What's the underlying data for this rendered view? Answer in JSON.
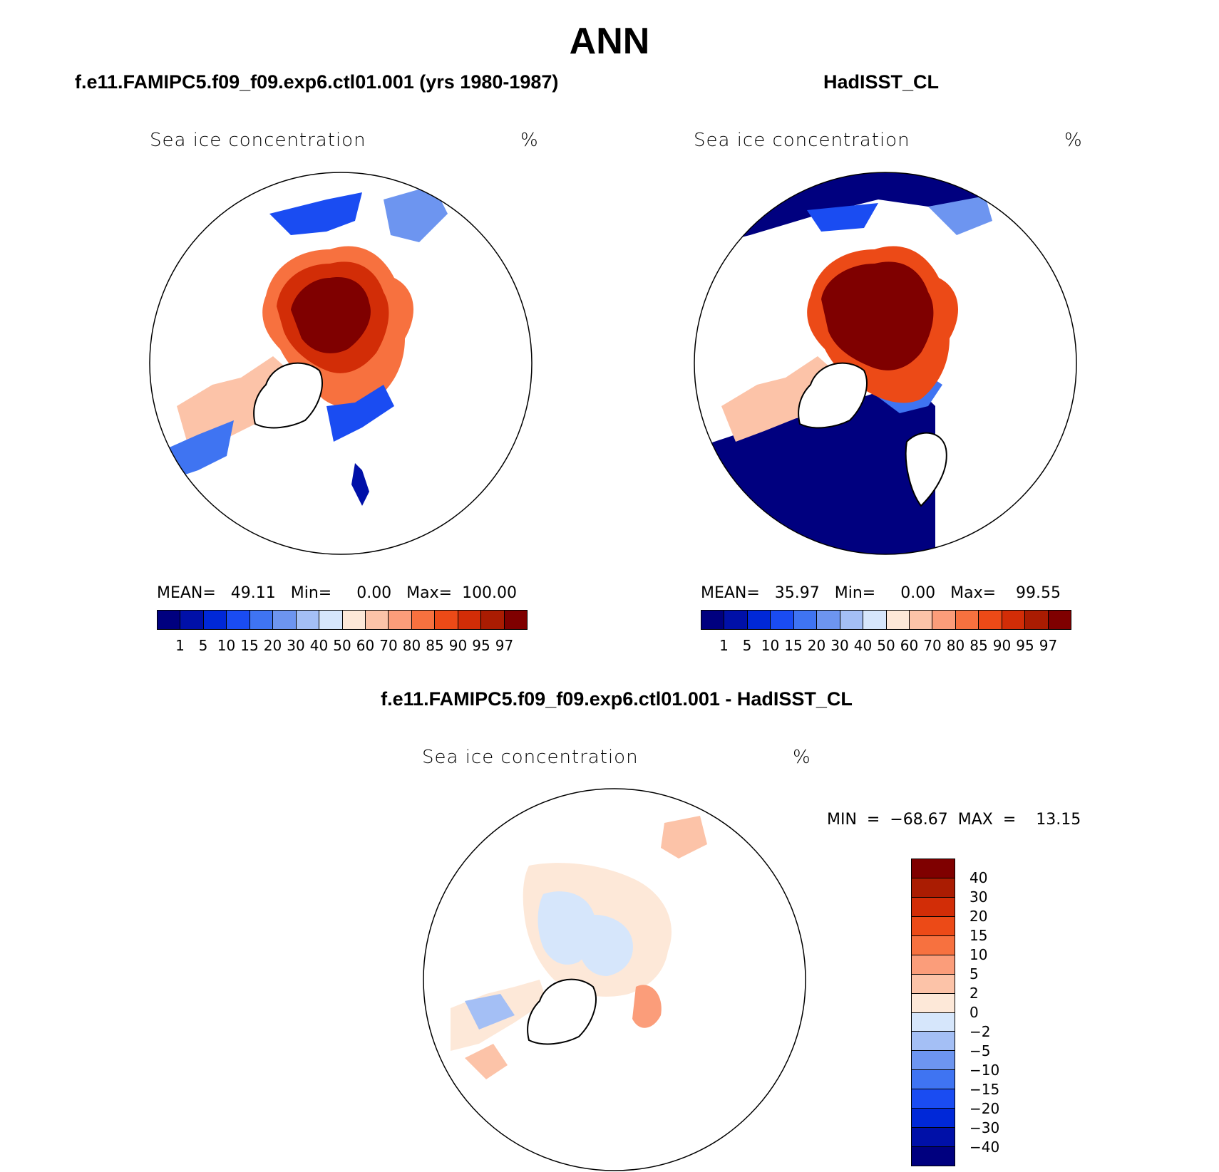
{
  "title": "ANN",
  "panels": [
    {
      "title": "f.e11.FAMIPC5.f09_f09.exp6.ctl01.001 (yrs 1980-1987)",
      "var_label": "Sea ice concentration",
      "unit": "%",
      "stats": "MEAN=   49.11   Min=     0.00   Max=  100.00"
    },
    {
      "title": "HadISST_CL",
      "var_label": "Sea ice concentration",
      "unit": "%",
      "stats": "MEAN=   35.97   Min=     0.00   Max=    99.55"
    }
  ],
  "diff_panel": {
    "title": "f.e11.FAMIPC5.f09_f09.exp6.ctl01.001 - HadISST_CL",
    "var_label": "Sea ice concentration",
    "unit": "%",
    "stats": "MIN  =  −68.67  MAX  =    13.15"
  },
  "colorbar_abs": {
    "labels": [
      "1",
      "5",
      "10",
      "15",
      "20",
      "30",
      "40",
      "50",
      "60",
      "70",
      "80",
      "85",
      "90",
      "95",
      "97"
    ],
    "colors": [
      "#00007f",
      "#0010a8",
      "#0028d8",
      "#1a4cf2",
      "#3f74f2",
      "#6d95f0",
      "#a4bff5",
      "#d6e6fb",
      "#fde8d8",
      "#fcc3a8",
      "#fb9d7a",
      "#f7713f",
      "#ec4a17",
      "#d22d07",
      "#aa1c02",
      "#7f0000"
    ]
  },
  "colorbar_diff": {
    "labels": [
      "40",
      "30",
      "20",
      "15",
      "10",
      "5",
      "2",
      "0",
      "−2",
      "−5",
      "−10",
      "−15",
      "−20",
      "−30",
      "−40"
    ],
    "colors": [
      "#7f0000",
      "#aa1c02",
      "#d22d07",
      "#ec4a17",
      "#f7713f",
      "#fb9d7a",
      "#fcc3a8",
      "#fde8d8",
      "#d6e6fb",
      "#a4bff5",
      "#6d95f0",
      "#3f74f2",
      "#1a4cf2",
      "#0028d8",
      "#0010a8",
      "#00007f"
    ]
  }
}
